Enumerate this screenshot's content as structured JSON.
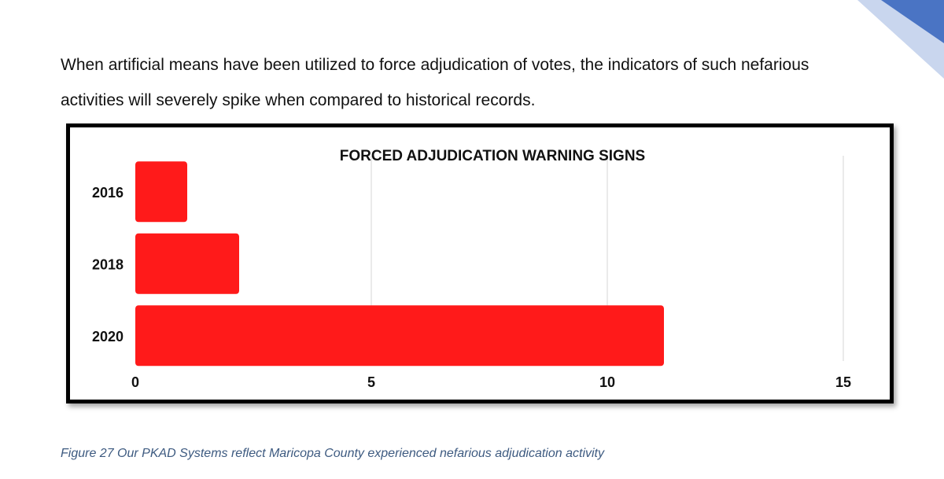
{
  "intro": {
    "line1": "When artificial means have been utilized to force adjudication of votes, the indicators of such nefarious",
    "line2": "activities will severely spike when compared to historical records."
  },
  "caption": "Figure 27 Our PKAD Systems reflect Maricopa County experienced nefarious adjudication activity",
  "colors": {
    "bar": "#ff1a1a",
    "grid": "#e3e3e3",
    "frame": "#000000",
    "caption": "#3d5a80",
    "corner_light": "#c9d6ee",
    "corner_dark": "#4a74c4"
  },
  "chart_data": {
    "type": "bar",
    "orientation": "horizontal",
    "title": "FORCED ADJUDICATION WARNING SIGNS",
    "categories": [
      "2016",
      "2018",
      "2020"
    ],
    "values": [
      1.1,
      2.2,
      11.2
    ],
    "xlim": [
      0,
      15
    ],
    "xticks": [
      "0",
      "5",
      "10",
      "15"
    ],
    "grid": true,
    "legend": "none"
  }
}
